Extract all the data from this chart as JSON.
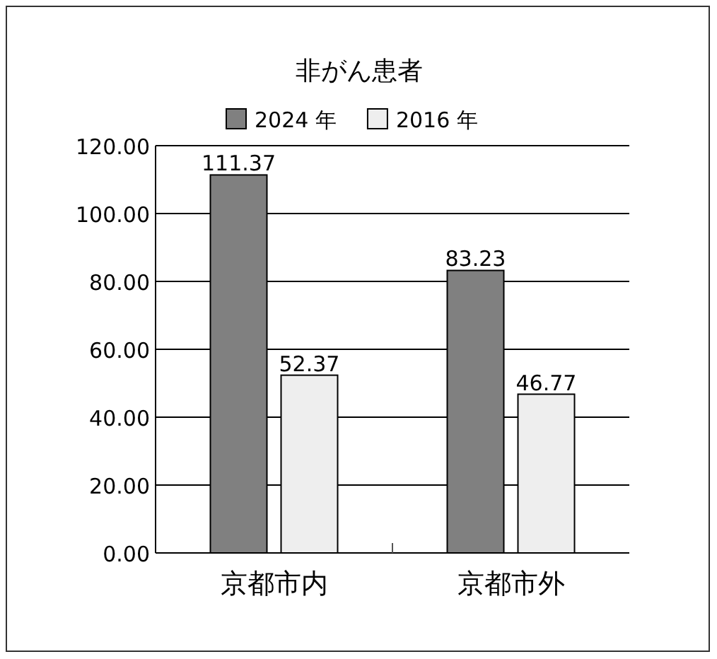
{
  "chart_data": {
    "type": "bar",
    "title": "非がん患者",
    "categories": [
      "京都市内",
      "京都市外"
    ],
    "series": [
      {
        "name": "2024 年",
        "color": "#808080",
        "values": [
          111.37,
          83.23
        ]
      },
      {
        "name": "2016 年",
        "color": "#eeeeee",
        "values": [
          52.37,
          46.77
        ]
      }
    ],
    "ylim": [
      0,
      120
    ],
    "yticks": [
      {
        "value": 0,
        "label": "0.00"
      },
      {
        "value": 20,
        "label": "20.00"
      },
      {
        "value": 40,
        "label": "40.00"
      },
      {
        "value": 60,
        "label": "60.00"
      },
      {
        "value": 80,
        "label": "80.00"
      },
      {
        "value": 100,
        "label": "100.00"
      },
      {
        "value": 120,
        "label": "120.00"
      }
    ],
    "grid": "y",
    "legend": "top",
    "data_labels": true
  }
}
